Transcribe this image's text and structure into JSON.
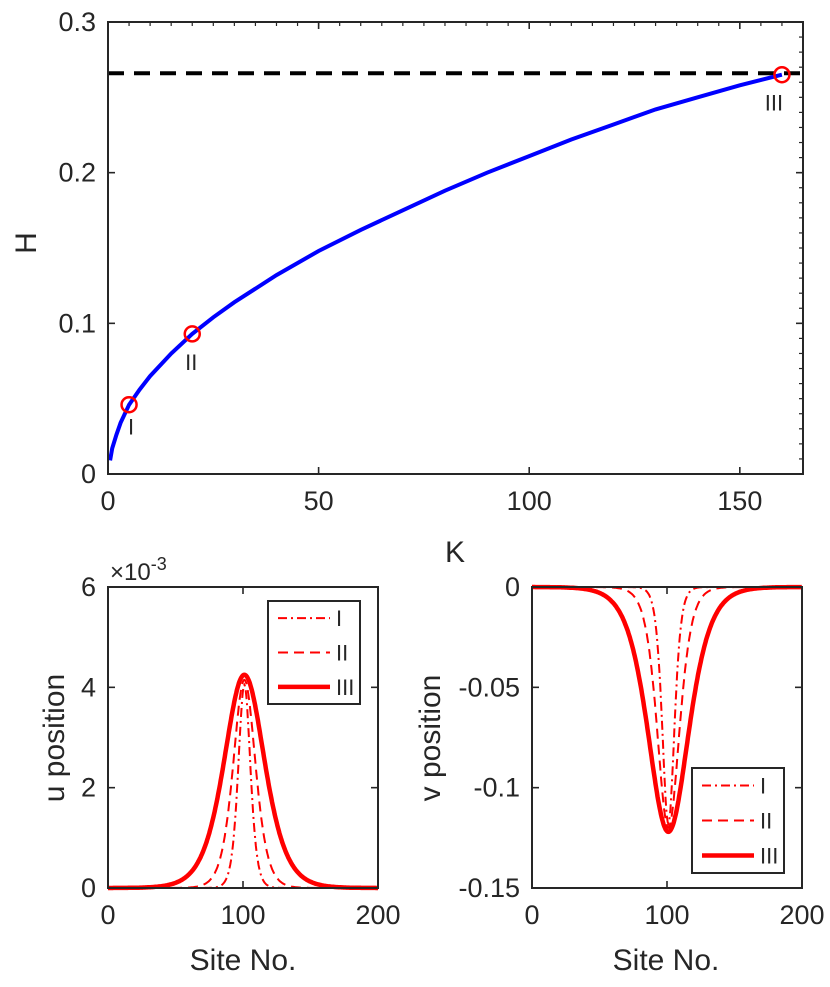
{
  "chart_data": [
    {
      "type": "line",
      "xlabel": "K",
      "ylabel": "H",
      "xlim": [
        0,
        165
      ],
      "ylim": [
        0,
        0.3
      ],
      "xticks": [
        0,
        50,
        100,
        150
      ],
      "yticks": [
        0,
        0.1,
        0.2,
        0.3
      ],
      "xtick_labels": [
        "0",
        "50",
        "100",
        "150"
      ],
      "ytick_labels": [
        "0",
        "0.1",
        "0.2",
        "0.3"
      ],
      "grid": false,
      "series": [
        {
          "color": "#0000ff",
          "x": [
            0.5,
            1,
            2,
            3,
            5,
            7.5,
            10,
            15,
            20,
            25,
            30,
            40,
            50,
            60,
            70,
            80,
            90,
            100,
            110,
            120,
            130,
            140,
            150,
            160
          ],
          "y": [
            0.009,
            0.017,
            0.026,
            0.034,
            0.046,
            0.056,
            0.065,
            0.08,
            0.093,
            0.104,
            0.114,
            0.132,
            0.148,
            0.162,
            0.175,
            0.188,
            0.2,
            0.211,
            0.222,
            0.232,
            0.242,
            0.25,
            0.258,
            0.265
          ]
        }
      ],
      "reference_line": {
        "y": 0.266,
        "style": "dashed",
        "color": "#000000"
      },
      "markers": [
        {
          "label": "I",
          "x": 5,
          "y": 0.046
        },
        {
          "label": "II",
          "x": 20,
          "y": 0.093
        },
        {
          "label": "III",
          "x": 160,
          "y": 0.265
        }
      ],
      "marker_color": "#ff0000"
    },
    {
      "type": "line",
      "xlabel": "Site No.",
      "ylabel": "u position",
      "exponent_label": "×10",
      "exponent_power": "-3",
      "xlim": [
        0,
        200
      ],
      "ylim": [
        0,
        6
      ],
      "xticks": [
        0,
        100,
        200
      ],
      "yticks": [
        0,
        2,
        4,
        6
      ],
      "xtick_labels": [
        "0",
        "100",
        "200"
      ],
      "ytick_labels": [
        "0",
        "2",
        "4",
        "6"
      ],
      "grid": false,
      "legend": "top-right",
      "center": 101,
      "series": [
        {
          "name": "I",
          "style": "dashdot",
          "color": "#ff0000",
          "amplitude": 4.05,
          "width": 6
        },
        {
          "name": "II",
          "style": "dashed",
          "color": "#ff0000",
          "amplitude": 4.15,
          "width": 11
        },
        {
          "name": "III",
          "style": "solid",
          "color": "#ff0000",
          "amplitude": 4.25,
          "width": 20
        }
      ]
    },
    {
      "type": "line",
      "xlabel": "Site No.",
      "ylabel": "v position",
      "xlim": [
        0,
        200
      ],
      "ylim": [
        -0.15,
        0
      ],
      "xticks": [
        0,
        100,
        200
      ],
      "yticks": [
        0,
        -0.05,
        -0.1,
        -0.15
      ],
      "xtick_labels": [
        "0",
        "100",
        "200"
      ],
      "ytick_labels": [
        "0",
        "-0.05",
        "-0.1",
        "-0.15"
      ],
      "grid": false,
      "legend": "bottom-right",
      "center": 101,
      "series": [
        {
          "name": "I",
          "style": "dashdot",
          "color": "#ff0000",
          "amplitude": -0.118,
          "width": 6
        },
        {
          "name": "II",
          "style": "dashed",
          "color": "#ff0000",
          "amplitude": -0.12,
          "width": 11
        },
        {
          "name": "III",
          "style": "solid",
          "color": "#ff0000",
          "amplitude": -0.122,
          "width": 20
        }
      ]
    }
  ]
}
